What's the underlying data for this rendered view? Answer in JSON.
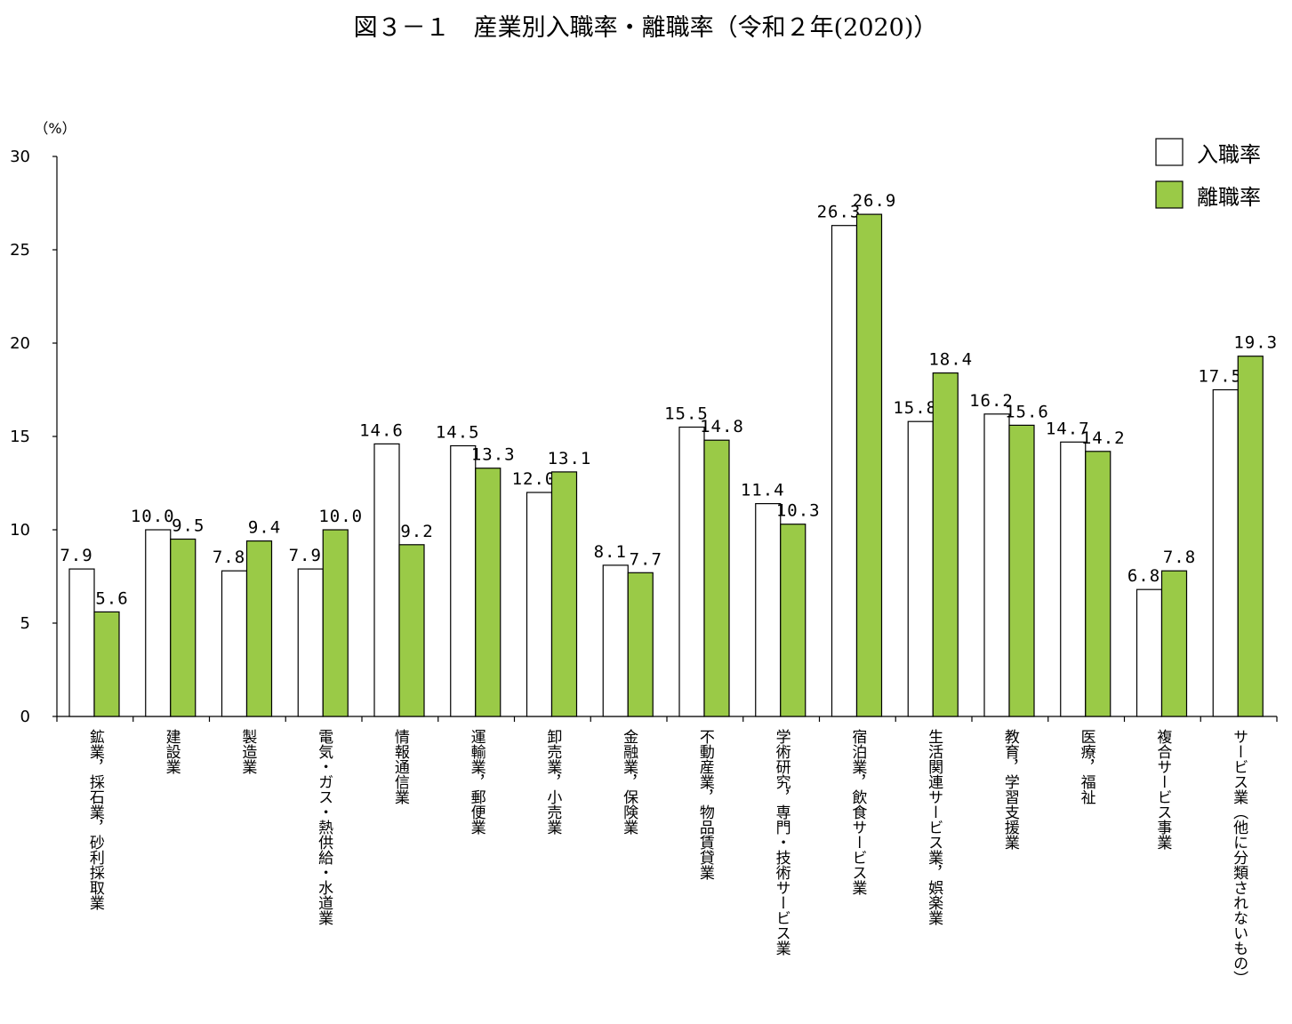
{
  "chart_data": {
    "type": "bar",
    "title": "図３－１　産業別入職率・離職率（令和２年(2020)）",
    "ylabel": "（%）",
    "xlabel": "",
    "ylim": [
      0,
      30
    ],
    "yticks": [
      "0",
      "5",
      "10",
      "15",
      "20",
      "25",
      "30"
    ],
    "grid": false,
    "legend_position": "top-right",
    "categories": [
      "鉱業，採石業，砂利採取業",
      "建設業",
      "製造業",
      "電気・ガス・熱供給・水道業",
      "情報通信業",
      "運輸業，郵便業",
      "卸売業，小売業",
      "金融業，保険業",
      "不動産業，物品賃貸業",
      "学術研究，専門・技術サービス業",
      "宿泊業，飲食サービス業",
      "生活関連サービス業，娯楽業",
      "教育，学習支援業",
      "医療，福祉",
      "複合サービス事業",
      "サービス業（他に分類されないもの）"
    ],
    "series": [
      {
        "name": "入職率",
        "color": "#ffffff",
        "values": [
          7.9,
          10.0,
          7.8,
          7.9,
          14.6,
          14.5,
          12.0,
          8.1,
          15.5,
          11.4,
          26.3,
          15.8,
          16.2,
          14.7,
          6.8,
          17.5
        ],
        "labels": [
          "7.9",
          "10.0",
          "7.8",
          "7.9",
          "14.6",
          "14.5",
          "12.0",
          "8.1",
          "15.5",
          "11.4",
          "26.3",
          "15.8",
          "16.2",
          "14.7",
          "6.8",
          "17.5"
        ]
      },
      {
        "name": "離職率",
        "color": "#9ACA47",
        "values": [
          5.6,
          9.5,
          9.4,
          10.0,
          9.2,
          13.3,
          13.1,
          7.7,
          14.8,
          10.3,
          26.9,
          18.4,
          15.6,
          14.2,
          7.8,
          19.3
        ],
        "labels": [
          "5.6",
          "9.5",
          "9.4",
          "10.0",
          "9.2",
          "13.3",
          "13.1",
          "7.7",
          "14.8",
          "10.3",
          "26.9",
          "18.4",
          "15.6",
          "14.2",
          "7.8",
          "19.3"
        ]
      }
    ]
  }
}
